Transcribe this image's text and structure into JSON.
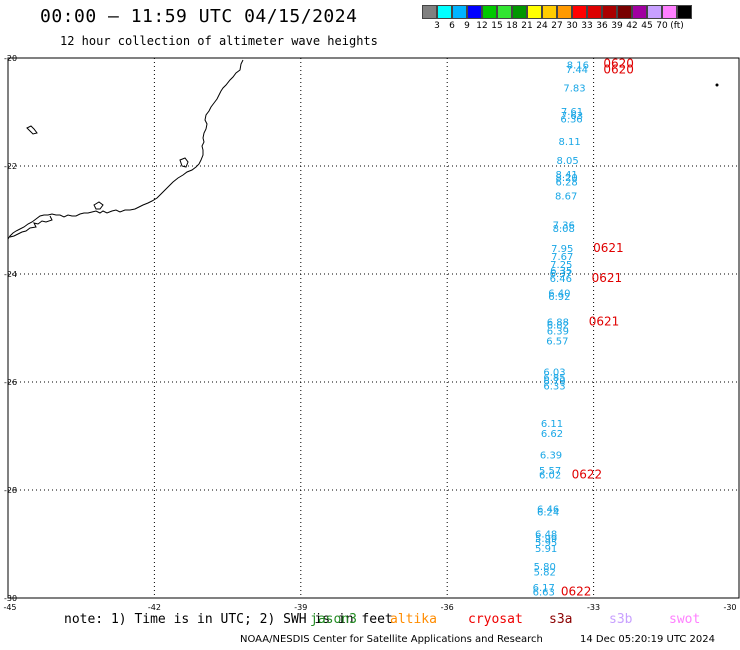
{
  "title": "00:00 — 11:59 UTC 04/15/2024",
  "subtitle": "12 hour collection of altimeter wave heights",
  "legend": {
    "colors": [
      "#808080",
      "#00ffff",
      "#00b4ff",
      "#0000ff",
      "#00c800",
      "#32e632",
      "#009600",
      "#ffff00",
      "#ffcc00",
      "#ff9900",
      "#ff0000",
      "#dc0000",
      "#aa0000",
      "#780000",
      "#a000a0",
      "#c8a0ff",
      "#ff80ff",
      "#000000"
    ],
    "labels": [
      "3",
      "6",
      "9",
      "12",
      "15",
      "18",
      "21",
      "24",
      "27",
      "30",
      "33",
      "36",
      "39",
      "42",
      "45",
      "70",
      "(ft)"
    ]
  },
  "axes": {
    "lat_labels": [
      "-20",
      "-22",
      "-24",
      "-26",
      "-28",
      "-30"
    ],
    "lon_labels": [
      "-45",
      "-42",
      "-39",
      "-36",
      "-33",
      "-30"
    ]
  },
  "wave_heights": [
    {
      "lat": -20.19,
      "lon": -33.55,
      "value": "8.16"
    },
    {
      "lat": -20.28,
      "lon": -33.57,
      "value": "7.44"
    },
    {
      "lat": -20.62,
      "lon": -33.62,
      "value": "7.83"
    },
    {
      "lat": -21.06,
      "lon": -33.67,
      "value": "7.61"
    },
    {
      "lat": -21.13,
      "lon": -33.67,
      "value": "7.63"
    },
    {
      "lat": -21.19,
      "lon": -33.68,
      "value": "6.36"
    },
    {
      "lat": -21.61,
      "lon": -33.72,
      "value": "8.11"
    },
    {
      "lat": -21.96,
      "lon": -33.76,
      "value": "8.05"
    },
    {
      "lat": -22.22,
      "lon": -33.78,
      "value": "8.41"
    },
    {
      "lat": -22.28,
      "lon": -33.78,
      "value": "8.20"
    },
    {
      "lat": -22.36,
      "lon": -33.78,
      "value": "6.28"
    },
    {
      "lat": -22.62,
      "lon": -33.79,
      "value": "8.67"
    },
    {
      "lat": -23.16,
      "lon": -33.84,
      "value": "7.36"
    },
    {
      "lat": -23.22,
      "lon": -33.84,
      "value": "8.08"
    },
    {
      "lat": -23.59,
      "lon": -33.87,
      "value": "7.95"
    },
    {
      "lat": -23.74,
      "lon": -33.87,
      "value": "7.67"
    },
    {
      "lat": -23.89,
      "lon": -33.89,
      "value": "7.25"
    },
    {
      "lat": -24.0,
      "lon": -33.89,
      "value": "6.35"
    },
    {
      "lat": -24.06,
      "lon": -33.9,
      "value": "6.37"
    },
    {
      "lat": -24.15,
      "lon": -33.9,
      "value": "6.46"
    },
    {
      "lat": -24.42,
      "lon": -33.93,
      "value": "6.40"
    },
    {
      "lat": -24.48,
      "lon": -33.93,
      "value": "6.92"
    },
    {
      "lat": -24.95,
      "lon": -33.96,
      "value": "6.88"
    },
    {
      "lat": -25.01,
      "lon": -33.96,
      "value": "6.82"
    },
    {
      "lat": -25.12,
      "lon": -33.96,
      "value": "6.39"
    },
    {
      "lat": -25.31,
      "lon": -33.97,
      "value": "6.57"
    },
    {
      "lat": -25.88,
      "lon": -34.03,
      "value": "6.03"
    },
    {
      "lat": -25.98,
      "lon": -34.03,
      "value": "6.85"
    },
    {
      "lat": -26.05,
      "lon": -34.03,
      "value": "6.79"
    },
    {
      "lat": -26.14,
      "lon": -34.03,
      "value": "6.33"
    },
    {
      "lat": -26.83,
      "lon": -34.08,
      "value": "6.11"
    },
    {
      "lat": -27.02,
      "lon": -34.08,
      "value": "6.62"
    },
    {
      "lat": -27.42,
      "lon": -34.1,
      "value": "6.39"
    },
    {
      "lat": -27.7,
      "lon": -34.12,
      "value": "5.57"
    },
    {
      "lat": -27.79,
      "lon": -34.12,
      "value": "6.02"
    },
    {
      "lat": -28.42,
      "lon": -34.16,
      "value": "6.46"
    },
    {
      "lat": -28.47,
      "lon": -34.16,
      "value": "6.24"
    },
    {
      "lat": -28.88,
      "lon": -34.2,
      "value": "6.48"
    },
    {
      "lat": -28.96,
      "lon": -34.2,
      "value": "5.99"
    },
    {
      "lat": -29.04,
      "lon": -34.2,
      "value": "5.95"
    },
    {
      "lat": -29.15,
      "lon": -34.2,
      "value": "5.91"
    },
    {
      "lat": -29.48,
      "lon": -34.23,
      "value": "5.80"
    },
    {
      "lat": -29.58,
      "lon": -34.23,
      "value": "5.82"
    },
    {
      "lat": -29.87,
      "lon": -34.25,
      "value": "6.17"
    },
    {
      "lat": -29.95,
      "lon": -34.25,
      "value": "6.63"
    }
  ],
  "pass_times": [
    {
      "lat": -20.18,
      "lon": -32.8,
      "value": "0620"
    },
    {
      "lat": -20.29,
      "lon": -32.8,
      "value": "0620"
    },
    {
      "lat": -23.59,
      "lon": -33.01,
      "value": "0621"
    },
    {
      "lat": -24.15,
      "lon": -33.04,
      "value": "0621"
    },
    {
      "lat": -24.95,
      "lon": -33.1,
      "value": "0621"
    },
    {
      "lat": -27.79,
      "lon": -33.45,
      "value": "0622"
    },
    {
      "lat": -29.95,
      "lon": -33.67,
      "value": "0622"
    }
  ],
  "note": "note: 1) Time is in UTC; 2) SWH is in feet",
  "missions": [
    {
      "name": "jason3",
      "color": "#228b22"
    },
    {
      "name": "altika",
      "color": "#ff8c00"
    },
    {
      "name": "cryosat",
      "color": "#ee0000"
    },
    {
      "name": "s3a",
      "color": "#8b0000"
    },
    {
      "name": "s3b",
      "color": "#c8a0ff"
    },
    {
      "name": "swot",
      "color": "#ff80ff"
    }
  ],
  "footer": {
    "credit": "NOAA/NESDIS Center for Satellite Applications and Research",
    "timestamp": "14 Dec 05:20:19 UTC 2024"
  }
}
